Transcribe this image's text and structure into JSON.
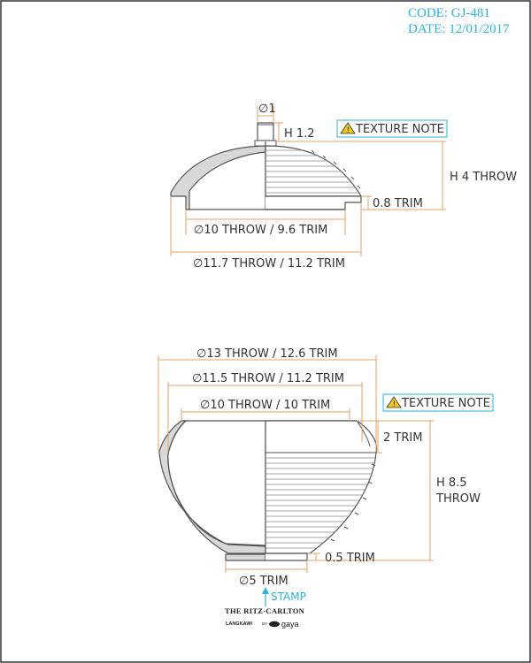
{
  "header": {
    "code": "CODE: GJ-481",
    "date": "DATE: 12/01/2017"
  },
  "colors": {
    "border": "#333333",
    "dimension_line": "#e8a060",
    "accent": "#27b5e2",
    "shell": "#d8d8d8",
    "outline": "#555555"
  },
  "lid": {
    "knob_diameter": "∅1",
    "knob_height": "H 1.2",
    "texture_note": "TEXTURE NOTE",
    "height": "H 4 THROW",
    "trim": "0.8 TRIM",
    "inner_diameter": "∅10 THROW / 9.6 TRIM",
    "outer_diameter": "∅11.7 THROW / 11.2 TRIM"
  },
  "bowl": {
    "outer_diameter": "∅13 THROW / 12.6 TRIM",
    "mid_diameter": "∅11.5 THROW / 11.2 TRIM",
    "rim_diameter": "∅10 THROW / 10 TRIM",
    "texture_note": "TEXTURE NOTE",
    "rim_trim": "2 TRIM",
    "height_line1": "H 8.5",
    "height_line2": "THROW",
    "foot_trim": "0.5 TRIM",
    "foot_diameter": "∅5 TRIM",
    "stamp_label": "STAMP"
  },
  "logo": {
    "brand": "THE RITZ-CARLTON",
    "location": "LANGKAWI",
    "by": "BY",
    "partner": "gaya"
  }
}
